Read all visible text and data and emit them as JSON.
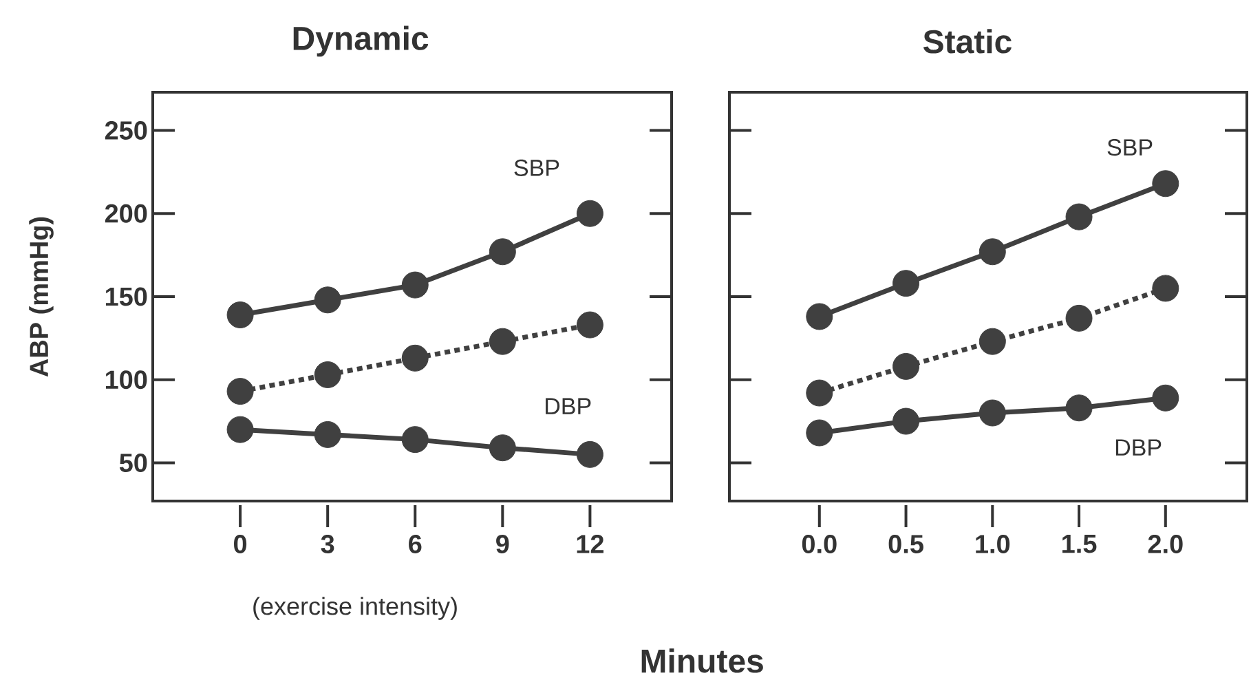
{
  "chart_data": [
    {
      "type": "line",
      "title": "Dynamic",
      "ylabel": "ABP (mmHg)",
      "xlabel": "(exercise intensity)",
      "marker": "circle",
      "x": [
        0,
        3,
        6,
        9,
        12
      ],
      "xlim": [
        -3,
        14.8
      ],
      "ylim": [
        27,
        273
      ],
      "xticks": [
        0,
        3,
        6,
        9,
        12
      ],
      "yticks": [
        50,
        100,
        150,
        200,
        250
      ],
      "series": [
        {
          "color": "#404040",
          "line_style": "solid",
          "values": [
            139,
            148,
            157,
            177,
            200
          ]
        },
        {
          "color": "#404040",
          "line_style": "dotted",
          "values": [
            93,
            103,
            113,
            123,
            133
          ]
        },
        {
          "color": "#404040",
          "line_style": "solid",
          "values": [
            70,
            67,
            64,
            59,
            55
          ]
        }
      ],
      "annotations": [
        "SBP",
        "DBP"
      ]
    },
    {
      "type": "line",
      "title": "Static",
      "xlabel": "Minutes",
      "marker": "circle",
      "tick_labels": "x",
      "x": [
        0,
        0.5,
        1,
        1.5,
        2
      ],
      "xlim": [
        -0.52,
        2.47
      ],
      "ylim": [
        27,
        273
      ],
      "xticks": [
        {
          "value": 0,
          "label": "0.0"
        },
        {
          "value": 0.5,
          "label": "0.5"
        },
        {
          "value": 1,
          "label": "1.0"
        },
        {
          "value": 1.5,
          "label": "1.5"
        },
        {
          "value": 2,
          "label": "2.0"
        }
      ],
      "yticks": [
        50,
        100,
        150,
        200,
        250
      ],
      "series": [
        {
          "color": "#404040",
          "line_style": "solid",
          "values": [
            138,
            158,
            177,
            198,
            218
          ]
        },
        {
          "color": "#404040",
          "line_style": "dotted",
          "values": [
            92,
            108,
            123,
            137,
            155
          ]
        },
        {
          "color": "#404040",
          "line_style": "solid",
          "values": [
            68,
            75,
            80,
            83,
            89
          ]
        }
      ],
      "annotations": [
        "SBP",
        "DBP"
      ]
    }
  ]
}
